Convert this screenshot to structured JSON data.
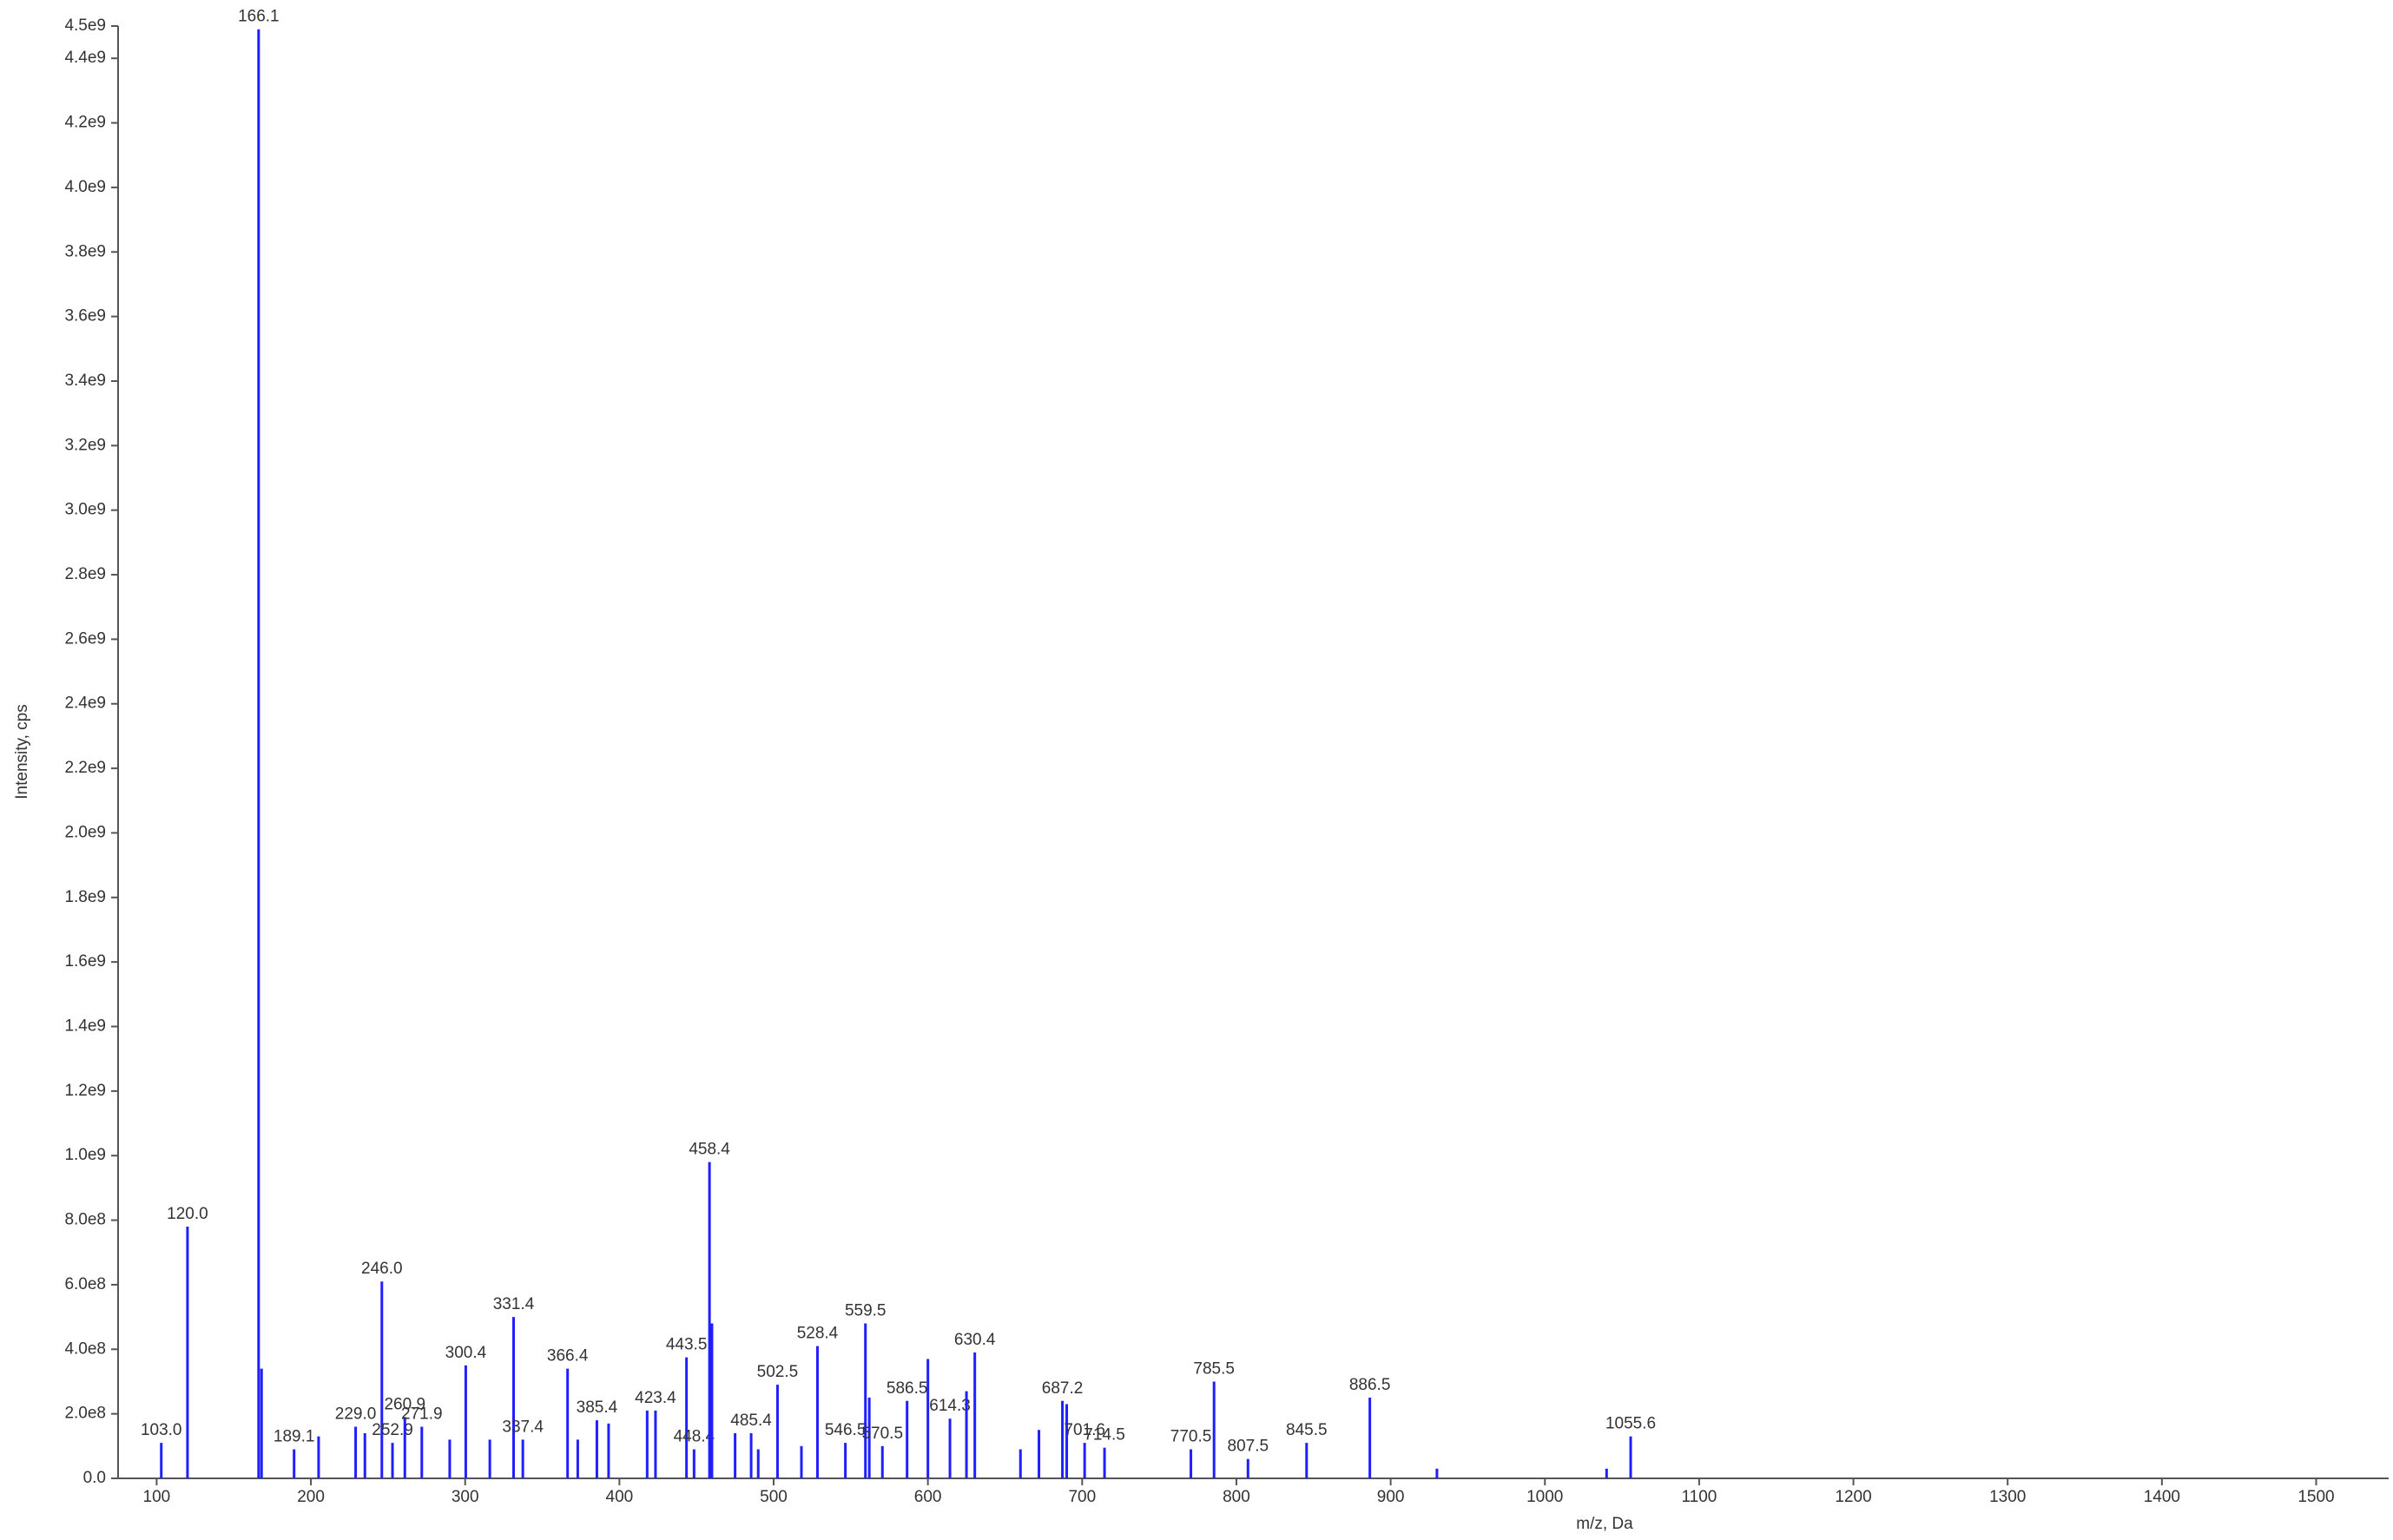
{
  "chart_data": {
    "type": "stem",
    "x_label": "m/z, Da",
    "y_label": "Intensity, cps",
    "color": "#1f1fff",
    "x": [
      103.0,
      120.0,
      166.1,
      168,
      189.1,
      205,
      229.0,
      235,
      246.0,
      252.9,
      260.9,
      271.9,
      290,
      300.4,
      316,
      331.4,
      337.4,
      366.4,
      373,
      385.4,
      393,
      418,
      423.4,
      443.5,
      448.4,
      458.4,
      460,
      475,
      485.4,
      490,
      502.5,
      518,
      528.4,
      546.5,
      559.5,
      562,
      570.5,
      586.5,
      600,
      614.3,
      625,
      630.4,
      660,
      672,
      687.2,
      690,
      701.6,
      714.5,
      770.5,
      785.5,
      807.5,
      845.5,
      886.5,
      930,
      1040,
      1055.6
    ],
    "values": [
      110000000,
      780000000,
      4490000000,
      340000000,
      90000000,
      130000000,
      160000000,
      140000000,
      610000000,
      110000000,
      190000000,
      160000000,
      120000000,
      350000000,
      120000000,
      500000000,
      120000000,
      340000000,
      120000000,
      180000000,
      170000000,
      210000000,
      210000000,
      375000000,
      90000000,
      980000000,
      480000000,
      140000000,
      140000000,
      90000000,
      290000000,
      100000000,
      410000000,
      110000000,
      480000000,
      250000000,
      100000000,
      240000000,
      370000000,
      185000000,
      270000000,
      390000000,
      90000000,
      150000000,
      240000000,
      230000000,
      110000000,
      95000000,
      90000000,
      300000000,
      60000000,
      110000000,
      250000000,
      30000000,
      30000000,
      130000000
    ],
    "peak_labels": [
      "103.0",
      "120.0",
      "166.1",
      null,
      "189.1",
      null,
      "229.0",
      null,
      "246.0",
      "252.9",
      "260.9",
      "271.9",
      null,
      "300.4",
      null,
      "331.4",
      "337.4",
      "366.4",
      null,
      "385.4",
      null,
      null,
      "423.4",
      "443.5",
      "448.4",
      "458.4",
      null,
      null,
      "485.4",
      null,
      "502.5",
      null,
      "528.4",
      "546.5",
      "559.5",
      null,
      "570.5",
      "586.5",
      null,
      "614.3",
      null,
      "630.4",
      null,
      null,
      "687.2",
      null,
      "701.6",
      "714.5",
      "770.5",
      "785.5",
      "807.5",
      "845.5",
      "886.5",
      null,
      null,
      "1055.6"
    ],
    "xlim": [
      75,
      1547
    ],
    "xticks": [
      100,
      200,
      300,
      400,
      500,
      600,
      700,
      800,
      900,
      1000,
      1100,
      1200,
      1300,
      1400,
      1500
    ],
    "ylim": [
      0,
      4500000000
    ],
    "yticks": [
      {
        "value": 0,
        "label": "0.0"
      },
      {
        "value": 200000000,
        "label": "2.0e8"
      },
      {
        "value": 400000000,
        "label": "4.0e8"
      },
      {
        "value": 600000000,
        "label": "6.0e8"
      },
      {
        "value": 800000000,
        "label": "8.0e8"
      },
      {
        "value": 1000000000,
        "label": "1.0e9"
      },
      {
        "value": 1200000000,
        "label": "1.2e9"
      },
      {
        "value": 1400000000,
        "label": "1.4e9"
      },
      {
        "value": 1600000000,
        "label": "1.6e9"
      },
      {
        "value": 1800000000,
        "label": "1.8e9"
      },
      {
        "value": 2000000000,
        "label": "2.0e9"
      },
      {
        "value": 2200000000,
        "label": "2.2e9"
      },
      {
        "value": 2400000000,
        "label": "2.4e9"
      },
      {
        "value": 2600000000,
        "label": "2.6e9"
      },
      {
        "value": 2800000000,
        "label": "2.8e9"
      },
      {
        "value": 3000000000,
        "label": "3.0e9"
      },
      {
        "value": 3200000000,
        "label": "3.2e9"
      },
      {
        "value": 3400000000,
        "label": "3.4e9"
      },
      {
        "value": 3600000000,
        "label": "3.6e9"
      },
      {
        "value": 3800000000,
        "label": "3.8e9"
      },
      {
        "value": 4000000000,
        "label": "4.0e9"
      },
      {
        "value": 4200000000,
        "label": "4.2e9"
      },
      {
        "value": 4400000000,
        "label": "4.4e9"
      },
      {
        "value": 4500000000,
        "label": "4.5e9"
      }
    ],
    "grid": false
  }
}
